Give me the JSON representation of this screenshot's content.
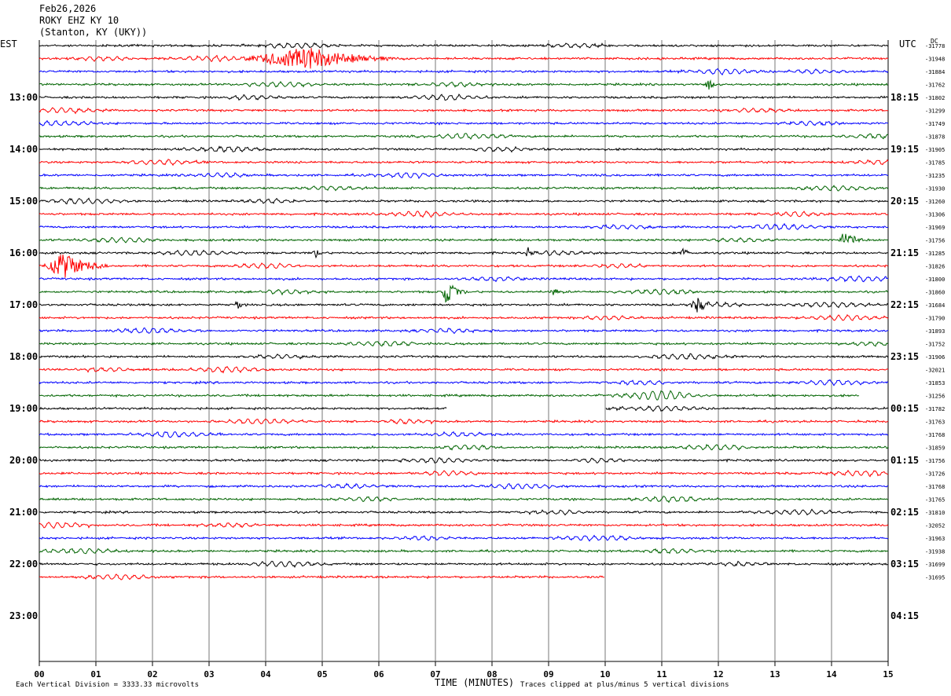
{
  "header": {
    "date": "Feb26,2026",
    "station": "ROKY EHZ KY 10",
    "location": "(Stanton, KY (UKY))"
  },
  "left_axis_label": "EST",
  "right_axis_label": "UTC",
  "right_column_header": "DC",
  "footer": {
    "scale_note": "Each Vertical Division = 3333.33 microvolts",
    "clip_note": "Traces clipped at plus/minus 5 vertical divisions"
  },
  "chart_data": {
    "type": "line",
    "title": "ROKY EHZ KY 10",
    "xlabel": "TIME (MINUTES)",
    "xlim": [
      0,
      15
    ],
    "x_ticks": [
      "00",
      "01",
      "02",
      "03",
      "04",
      "05",
      "06",
      "07",
      "08",
      "09",
      "10",
      "11",
      "12",
      "13",
      "14",
      "15"
    ],
    "grid": "vertical lines at each minute",
    "rows_per_hour": 4,
    "minutes_per_row": 15,
    "est_hour_labels": [
      "13:00",
      "14:00",
      "15:00",
      "16:00",
      "17:00",
      "18:00",
      "19:00",
      "20:00",
      "21:00",
      "22:00",
      "23:00"
    ],
    "utc_hour_labels": [
      "18:15",
      "19:15",
      "20:15",
      "21:15",
      "22:15",
      "23:15",
      "00:15",
      "01:15",
      "02:15",
      "03:15",
      "04:15"
    ],
    "trace_colors": [
      "#000000",
      "#ff0000",
      "#0000ff",
      "#006400"
    ],
    "dc_offsets": [
      "-31778",
      "-31948",
      "-31884",
      "-31762",
      "-31802",
      "-31299",
      "-31749",
      "-31878",
      "-31905",
      "-31785",
      "-31235",
      "-31930",
      "-31260",
      "-31306",
      "-31969",
      "-31756",
      "-31285",
      "-31826",
      "-31800",
      "-31860",
      "-31684",
      "-31790",
      "-31893",
      "-31752",
      "-31906",
      "-32021",
      "-31853",
      "-31256",
      "-31782",
      "-31763",
      "-31768",
      "-31859",
      "-31756",
      "-31726",
      "-31768",
      "-31765",
      "-31810",
      "-32052",
      "-31963",
      "-31938",
      "-31699",
      "-31695"
    ],
    "events": [
      {
        "row": 1,
        "start_min": 3.5,
        "end_min": 6.5,
        "peak_min": 4.85,
        "amplitude": "clipped"
      },
      {
        "row": 3,
        "start_min": 11.75,
        "end_min": 12.0,
        "peak_min": 11.85,
        "amplitude": "small"
      },
      {
        "row": 15,
        "start_min": 14.1,
        "end_min": 14.55,
        "peak_min": 14.25,
        "amplitude": "medium"
      },
      {
        "row": 16,
        "start_min": 4.8,
        "end_min": 5.0,
        "peak_min": 4.9,
        "amplitude": "small"
      },
      {
        "row": 16,
        "start_min": 8.55,
        "end_min": 8.8,
        "peak_min": 8.65,
        "amplitude": "small"
      },
      {
        "row": 16,
        "start_min": 11.3,
        "end_min": 11.55,
        "peak_min": 11.4,
        "amplitude": "small"
      },
      {
        "row": 17,
        "start_min": 0.05,
        "end_min": 1.2,
        "peak_min": 0.45,
        "amplitude": "large"
      },
      {
        "row": 19,
        "start_min": 7.1,
        "end_min": 7.6,
        "peak_min": 7.2,
        "amplitude": "large"
      },
      {
        "row": 19,
        "start_min": 9.0,
        "end_min": 9.3,
        "peak_min": 9.1,
        "amplitude": "small"
      },
      {
        "row": 20,
        "start_min": 3.45,
        "end_min": 3.6,
        "peak_min": 3.5,
        "amplitude": "small"
      },
      {
        "row": 20,
        "start_min": 11.5,
        "end_min": 11.9,
        "peak_min": 11.6,
        "amplitude": "medium"
      }
    ],
    "gaps": [
      {
        "row": 27,
        "start_min": 14.5,
        "end_min": 15.0
      },
      {
        "row": 28,
        "start_min": 7.2,
        "end_min": 10.0
      },
      {
        "row": 41,
        "start_min": 10.0,
        "end_min": 15.0
      }
    ],
    "rows_recorded": 42
  }
}
